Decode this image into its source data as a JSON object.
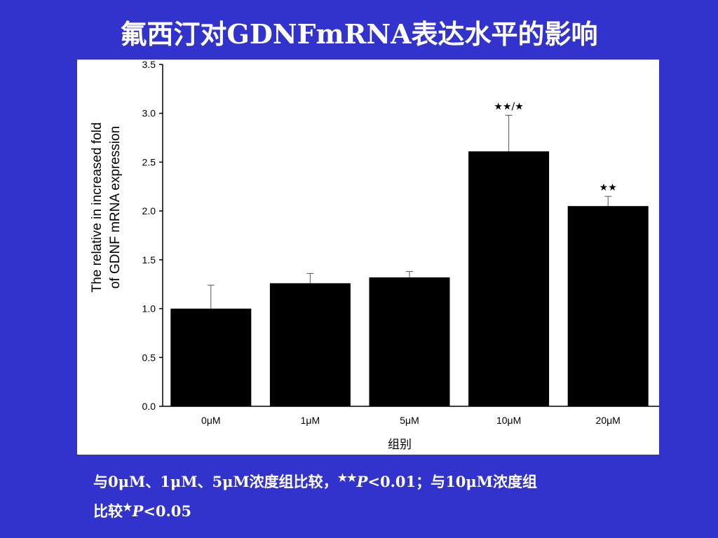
{
  "slide": {
    "title": "氟西汀对GDNFmRNA表达水平的影响"
  },
  "chart_data": {
    "type": "bar",
    "categories": [
      "0μM",
      "1μM",
      "5μM",
      "10μM",
      "20μM"
    ],
    "values": [
      1.0,
      1.26,
      1.32,
      2.61,
      2.05
    ],
    "error_tops": [
      1.24,
      1.36,
      1.38,
      2.98,
      2.15
    ],
    "significance": [
      "",
      "",
      "",
      "★★/★",
      "★★"
    ],
    "ylim": [
      0,
      3.5
    ],
    "yticks": [
      "0.0",
      "0.5",
      "1.0",
      "1.5",
      "2.0",
      "2.5",
      "3.0",
      "3.5"
    ],
    "ytick_values": [
      0,
      0.5,
      1.0,
      1.5,
      2.0,
      2.5,
      3.0,
      3.5
    ],
    "ylabel_line1": "The relative in increased fold",
    "ylabel_line2": "of GDNF mRNA expression",
    "xlabel": "组别",
    "bar_color": "#000000"
  },
  "footnote": {
    "part1": "与0μM、1μM、5μM浓度组比较，",
    "stars1": "★★",
    "p1_label": "P",
    "p1_rest": "<0.01；与10μM浓度组",
    "part2": "比较",
    "stars2": "★",
    "p2_label": "P",
    "p2_rest": "<0.05"
  }
}
